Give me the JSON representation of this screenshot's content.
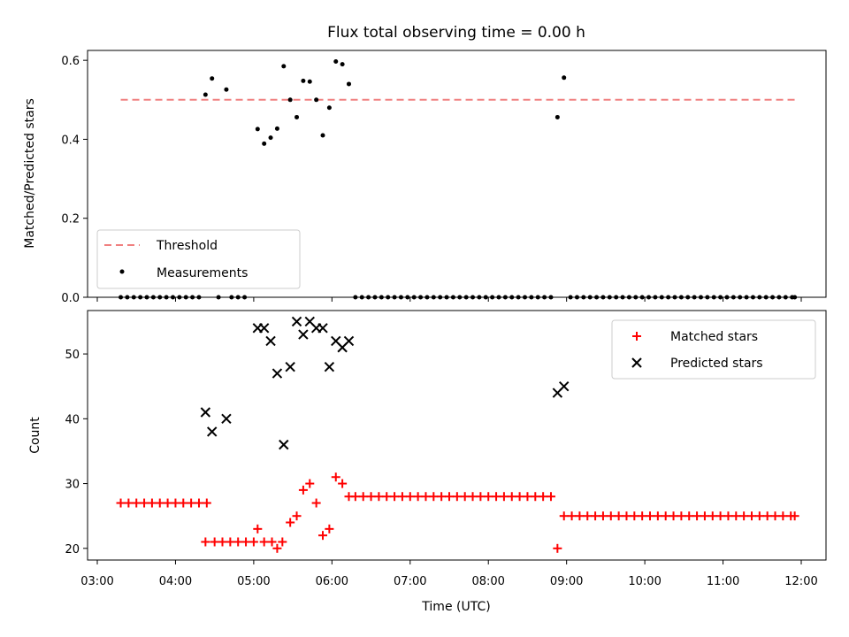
{
  "chart_data": [
    {
      "type": "scatter",
      "title": "Flux total observing time = 0.00 h",
      "ylabel": "Matched/Predicted stars",
      "xlim": [
        "03:00",
        "12:00"
      ],
      "ylim": [
        0,
        0.625
      ],
      "yticks": [
        "0.0",
        "0.2",
        "0.4",
        "0.6"
      ],
      "legend_position": "lower-left",
      "threshold": {
        "name": "Threshold",
        "value": 0.5,
        "x_range": [
          "03:18",
          "11:55"
        ],
        "color": "#f08080"
      },
      "series": [
        {
          "name": "Measurements",
          "color": "#000000",
          "points": [
            [
              "04:23",
              0.513
            ],
            [
              "04:28",
              0.554
            ],
            [
              "04:39",
              0.526
            ],
            [
              "05:03",
              0.426
            ],
            [
              "05:08",
              0.389
            ],
            [
              "05:13",
              0.404
            ],
            [
              "05:18",
              0.427
            ],
            [
              "05:23",
              0.585
            ],
            [
              "05:28",
              0.5
            ],
            [
              "05:33",
              0.456
            ],
            [
              "05:38",
              0.548
            ],
            [
              "05:43",
              0.546
            ],
            [
              "05:48",
              0.5
            ],
            [
              "05:53",
              0.41
            ],
            [
              "05:58",
              0.48
            ],
            [
              "06:03",
              0.597
            ],
            [
              "06:08",
              0.59
            ],
            [
              "06:13",
              0.54
            ],
            [
              "08:53",
              0.456
            ],
            [
              "08:58",
              0.556
            ],
            [
              "03:18",
              0
            ],
            [
              "03:23",
              0
            ],
            [
              "03:28",
              0
            ],
            [
              "03:33",
              0
            ],
            [
              "03:38",
              0
            ],
            [
              "03:43",
              0
            ],
            [
              "03:48",
              0
            ],
            [
              "03:53",
              0
            ],
            [
              "03:58",
              0
            ],
            [
              "04:03",
              0
            ],
            [
              "04:08",
              0
            ],
            [
              "04:13",
              0
            ],
            [
              "04:18",
              0
            ],
            [
              "04:33",
              0
            ],
            [
              "04:43",
              0
            ],
            [
              "04:48",
              0
            ],
            [
              "04:53",
              0
            ],
            [
              "06:18",
              0
            ],
            [
              "06:23",
              0
            ],
            [
              "06:28",
              0
            ],
            [
              "06:33",
              0
            ],
            [
              "06:38",
              0
            ],
            [
              "06:43",
              0
            ],
            [
              "06:48",
              0
            ],
            [
              "06:53",
              0
            ],
            [
              "06:58",
              0
            ],
            [
              "07:03",
              0
            ],
            [
              "07:08",
              0
            ],
            [
              "07:13",
              0
            ],
            [
              "07:18",
              0
            ],
            [
              "07:23",
              0
            ],
            [
              "07:28",
              0
            ],
            [
              "07:33",
              0
            ],
            [
              "07:38",
              0
            ],
            [
              "07:43",
              0
            ],
            [
              "07:48",
              0
            ],
            [
              "07:53",
              0
            ],
            [
              "07:58",
              0
            ],
            [
              "08:03",
              0
            ],
            [
              "08:08",
              0
            ],
            [
              "08:13",
              0
            ],
            [
              "08:18",
              0
            ],
            [
              "08:23",
              0
            ],
            [
              "08:28",
              0
            ],
            [
              "08:33",
              0
            ],
            [
              "08:38",
              0
            ],
            [
              "08:43",
              0
            ],
            [
              "08:48",
              0
            ],
            [
              "09:03",
              0
            ],
            [
              "09:08",
              0
            ],
            [
              "09:13",
              0
            ],
            [
              "09:18",
              0
            ],
            [
              "09:23",
              0
            ],
            [
              "09:28",
              0
            ],
            [
              "09:33",
              0
            ],
            [
              "09:38",
              0
            ],
            [
              "09:43",
              0
            ],
            [
              "09:48",
              0
            ],
            [
              "09:53",
              0
            ],
            [
              "09:58",
              0
            ],
            [
              "10:03",
              0
            ],
            [
              "10:08",
              0
            ],
            [
              "10:13",
              0
            ],
            [
              "10:18",
              0
            ],
            [
              "10:23",
              0
            ],
            [
              "10:28",
              0
            ],
            [
              "10:33",
              0
            ],
            [
              "10:38",
              0
            ],
            [
              "10:43",
              0
            ],
            [
              "10:48",
              0
            ],
            [
              "10:53",
              0
            ],
            [
              "10:58",
              0
            ],
            [
              "11:03",
              0
            ],
            [
              "11:08",
              0
            ],
            [
              "11:13",
              0
            ],
            [
              "11:18",
              0
            ],
            [
              "11:23",
              0
            ],
            [
              "11:28",
              0
            ],
            [
              "11:33",
              0
            ],
            [
              "11:38",
              0
            ],
            [
              "11:43",
              0
            ],
            [
              "11:48",
              0
            ],
            [
              "11:53",
              0
            ],
            [
              "11:55",
              0
            ]
          ]
        }
      ]
    },
    {
      "type": "scatter",
      "xlabel": "Time (UTC)",
      "ylabel": "Count",
      "xlim": [
        "03:00",
        "12:00"
      ],
      "ylim": [
        18.2,
        56.7
      ],
      "xticks": [
        "03:00",
        "04:00",
        "05:00",
        "06:00",
        "07:00",
        "08:00",
        "09:00",
        "10:00",
        "11:00",
        "12:00"
      ],
      "yticks": [
        "20",
        "30",
        "40",
        "50"
      ],
      "legend_position": "top-right",
      "series": [
        {
          "name": "Matched stars",
          "color": "#ff0000",
          "marker": "+",
          "points": [
            [
              "03:18",
              27
            ],
            [
              "03:24",
              27
            ],
            [
              "03:30",
              27
            ],
            [
              "03:36",
              27
            ],
            [
              "03:42",
              27
            ],
            [
              "03:48",
              27
            ],
            [
              "03:54",
              27
            ],
            [
              "04:00",
              27
            ],
            [
              "04:06",
              27
            ],
            [
              "04:12",
              27
            ],
            [
              "04:18",
              27
            ],
            [
              "04:24",
              27
            ],
            [
              "04:23",
              21
            ],
            [
              "04:30",
              21
            ],
            [
              "04:36",
              21
            ],
            [
              "04:42",
              21
            ],
            [
              "04:48",
              21
            ],
            [
              "04:54",
              21
            ],
            [
              "05:00",
              21
            ],
            [
              "05:08",
              21
            ],
            [
              "05:14",
              21
            ],
            [
              "05:22",
              21
            ],
            [
              "05:03",
              23
            ],
            [
              "05:18",
              20
            ],
            [
              "05:28",
              24
            ],
            [
              "05:33",
              25
            ],
            [
              "05:38",
              29
            ],
            [
              "05:43",
              30
            ],
            [
              "05:48",
              27
            ],
            [
              "05:53",
              22
            ],
            [
              "05:58",
              23
            ],
            [
              "06:03",
              31
            ],
            [
              "06:08",
              30
            ],
            [
              "06:13",
              28
            ],
            [
              "06:18",
              28
            ],
            [
              "06:24",
              28
            ],
            [
              "06:30",
              28
            ],
            [
              "06:36",
              28
            ],
            [
              "06:42",
              28
            ],
            [
              "06:48",
              28
            ],
            [
              "06:54",
              28
            ],
            [
              "07:00",
              28
            ],
            [
              "07:06",
              28
            ],
            [
              "07:12",
              28
            ],
            [
              "07:18",
              28
            ],
            [
              "07:24",
              28
            ],
            [
              "07:30",
              28
            ],
            [
              "07:36",
              28
            ],
            [
              "07:42",
              28
            ],
            [
              "07:48",
              28
            ],
            [
              "07:54",
              28
            ],
            [
              "08:00",
              28
            ],
            [
              "08:06",
              28
            ],
            [
              "08:12",
              28
            ],
            [
              "08:18",
              28
            ],
            [
              "08:24",
              28
            ],
            [
              "08:30",
              28
            ],
            [
              "08:36",
              28
            ],
            [
              "08:42",
              28
            ],
            [
              "08:48",
              28
            ],
            [
              "08:53",
              20
            ],
            [
              "08:58",
              25
            ],
            [
              "09:04",
              25
            ],
            [
              "09:10",
              25
            ],
            [
              "09:16",
              25
            ],
            [
              "09:22",
              25
            ],
            [
              "09:28",
              25
            ],
            [
              "09:34",
              25
            ],
            [
              "09:40",
              25
            ],
            [
              "09:46",
              25
            ],
            [
              "09:52",
              25
            ],
            [
              "09:58",
              25
            ],
            [
              "10:04",
              25
            ],
            [
              "10:10",
              25
            ],
            [
              "10:16",
              25
            ],
            [
              "10:22",
              25
            ],
            [
              "10:28",
              25
            ],
            [
              "10:34",
              25
            ],
            [
              "10:40",
              25
            ],
            [
              "10:46",
              25
            ],
            [
              "10:52",
              25
            ],
            [
              "10:58",
              25
            ],
            [
              "11:04",
              25
            ],
            [
              "11:10",
              25
            ],
            [
              "11:16",
              25
            ],
            [
              "11:22",
              25
            ],
            [
              "11:28",
              25
            ],
            [
              "11:34",
              25
            ],
            [
              "11:40",
              25
            ],
            [
              "11:46",
              25
            ],
            [
              "11:52",
              25
            ],
            [
              "11:55",
              25
            ]
          ]
        },
        {
          "name": "Predicted stars",
          "color": "#000000",
          "marker": "x",
          "points": [
            [
              "04:23",
              41
            ],
            [
              "04:28",
              38
            ],
            [
              "04:39",
              40
            ],
            [
              "05:03",
              54
            ],
            [
              "05:08",
              54
            ],
            [
              "05:13",
              52
            ],
            [
              "05:18",
              47
            ],
            [
              "05:23",
              36
            ],
            [
              "05:28",
              48
            ],
            [
              "05:33",
              55
            ],
            [
              "05:38",
              53
            ],
            [
              "05:43",
              55
            ],
            [
              "05:48",
              54
            ],
            [
              "05:53",
              54
            ],
            [
              "05:58",
              48
            ],
            [
              "06:03",
              52
            ],
            [
              "06:08",
              51
            ],
            [
              "06:13",
              52
            ],
            [
              "08:53",
              44
            ],
            [
              "08:58",
              45
            ]
          ]
        }
      ]
    }
  ]
}
